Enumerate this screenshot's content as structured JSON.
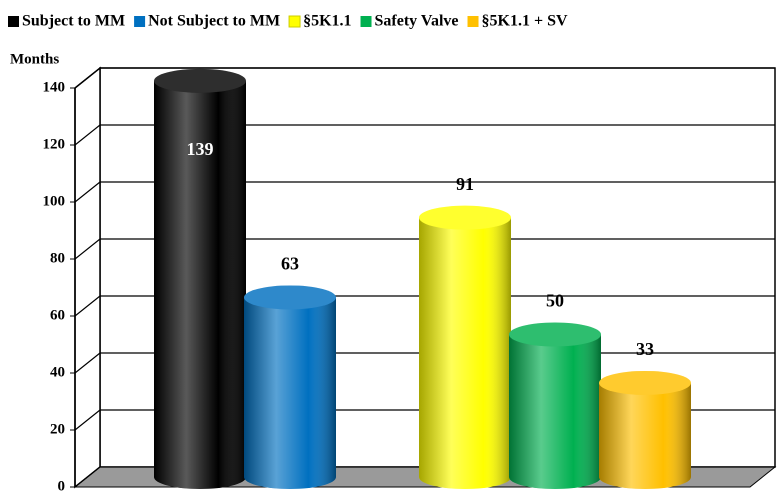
{
  "chart_data": {
    "type": "bar",
    "y_label": "Months",
    "categories": [
      null,
      null
    ],
    "series": [
      {
        "name": "Subject to MM",
        "color": "#000000",
        "values": [
          139,
          null
        ]
      },
      {
        "name": "Not Subject to MM",
        "color": "#0070c0",
        "values": [
          63,
          null
        ]
      },
      {
        "name": "§5K1.1",
        "color": "#ffff00",
        "values": [
          null,
          91
        ]
      },
      {
        "name": "Safety Valve",
        "color": "#00b050",
        "values": [
          null,
          50
        ]
      },
      {
        "name": "§5K1.1 + SV",
        "color": "#ffc000",
        "values": [
          null,
          33
        ]
      }
    ],
    "ylim": [
      0,
      140
    ],
    "yticks": [
      0,
      20,
      40,
      60,
      80,
      100,
      120,
      140
    ],
    "grid": true,
    "legend": "top"
  }
}
